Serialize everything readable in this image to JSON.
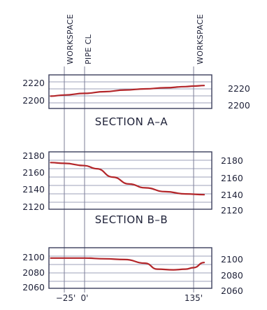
{
  "colors": {
    "profile_line": "#b3262a",
    "frame": "#3b3f5c",
    "grid": "#7c80a0",
    "text": "#1e2138"
  },
  "vertical_markers": [
    {
      "key": "workspace_left",
      "label": "WORKSPACE"
    },
    {
      "key": "pipe_cl",
      "label": "PIPE CL"
    },
    {
      "key": "workspace_right",
      "label": "WORKSPACE"
    }
  ],
  "x_axis": {
    "tick_labels": [
      "−25'",
      "0'",
      "135'"
    ]
  },
  "chart_data": [
    {
      "type": "line",
      "section_label": "SECTION A–A",
      "y_tick_labels": [
        "2220",
        "2200"
      ],
      "y_range": [
        2195,
        2225
      ],
      "x": [
        -42,
        -25,
        0,
        25,
        50,
        75,
        100,
        125,
        135,
        148
      ],
      "y": [
        2206,
        2207,
        2208.5,
        2210,
        2211.5,
        2212.5,
        2213.5,
        2214.5,
        2215,
        2215.5
      ]
    },
    {
      "type": "line",
      "section_label": "SECTION B–B",
      "y_tick_labels": [
        "2180",
        "2160",
        "2140",
        "2120"
      ],
      "y_range": [
        2115,
        2190
      ],
      "x": [
        -42,
        -25,
        0,
        15,
        35,
        55,
        75,
        100,
        125,
        148
      ],
      "y": [
        2176,
        2175,
        2172,
        2168,
        2157,
        2148,
        2143,
        2138,
        2135,
        2134
      ]
    },
    {
      "type": "line",
      "section_label": "",
      "y_tick_labels": [
        "2100",
        "2080",
        "2060"
      ],
      "y_range": [
        2055,
        2110
      ],
      "x": [
        -42,
        -25,
        0,
        25,
        50,
        75,
        90,
        110,
        125,
        135,
        148
      ],
      "y": [
        2096,
        2096,
        2096,
        2095,
        2094,
        2089,
        2081,
        2080,
        2081,
        2083,
        2090
      ]
    }
  ]
}
